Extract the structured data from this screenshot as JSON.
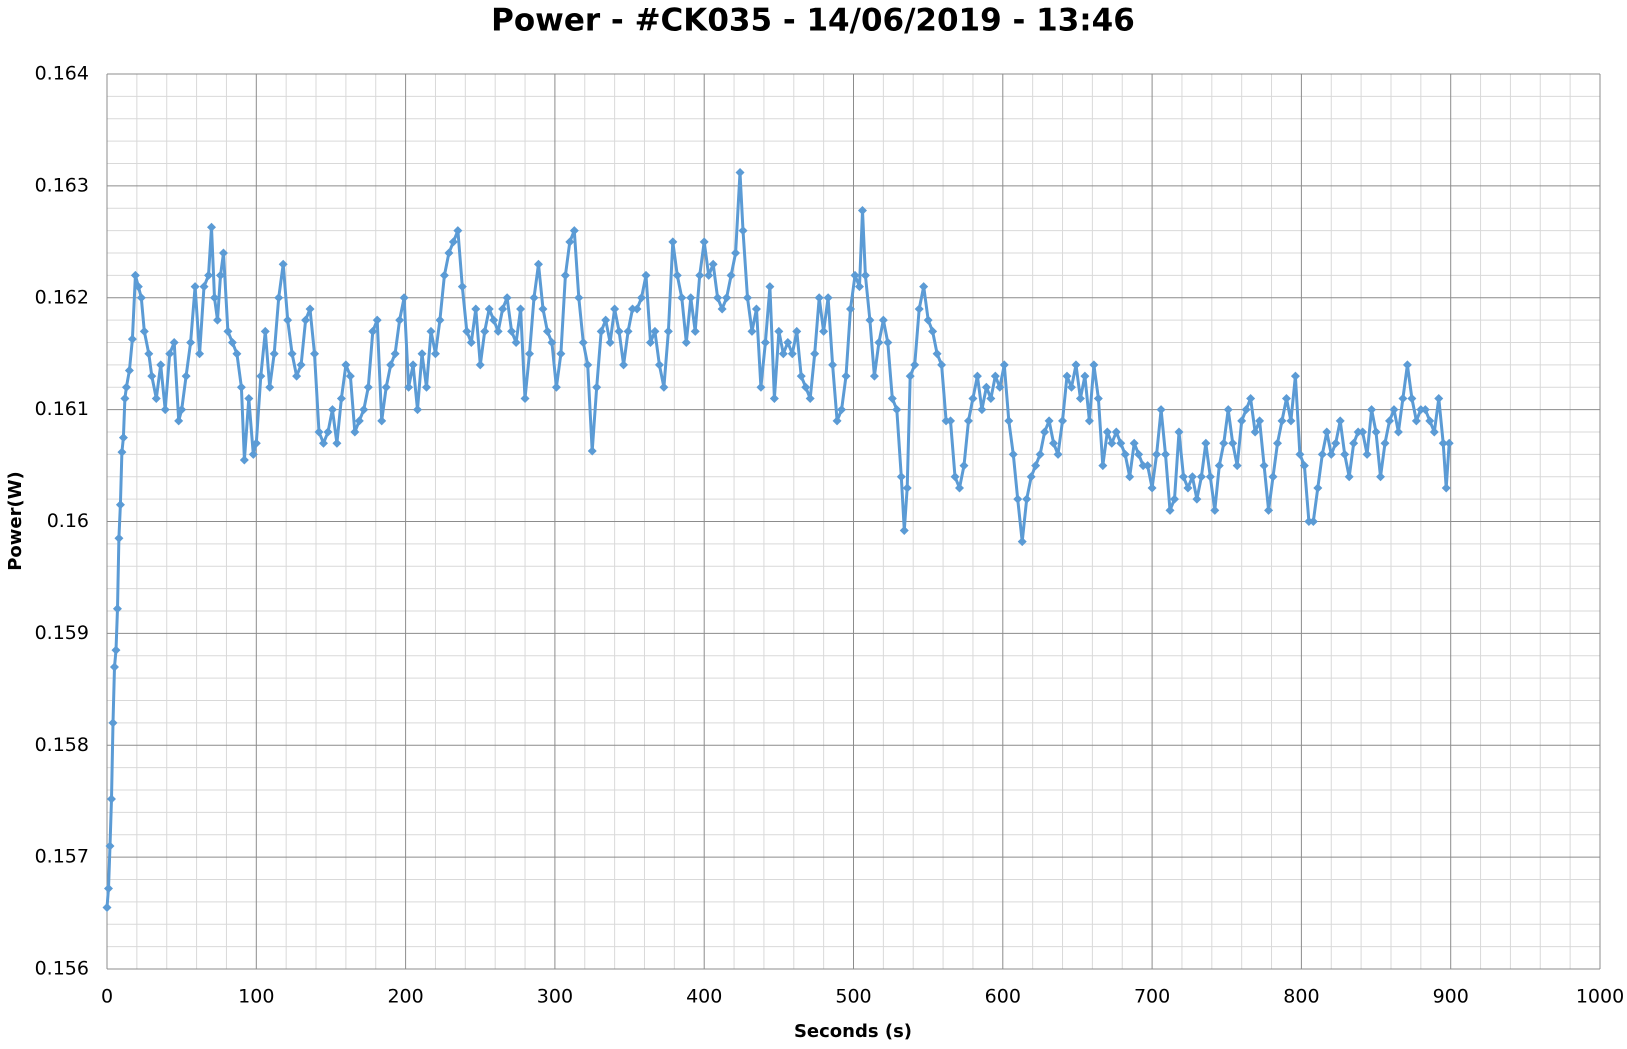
{
  "chart_data": {
    "type": "line",
    "title": "Power - #CK035 - 14/06/2019 - 13:46",
    "x_label": "Seconds (s)",
    "y_label": "Power(W)",
    "xlim": [
      0,
      1000
    ],
    "xticks": [
      0,
      100,
      200,
      300,
      400,
      500,
      600,
      700,
      800,
      900,
      1000
    ],
    "ylim": [
      0.156,
      0.164
    ],
    "yticks": [
      0.156,
      0.157,
      0.158,
      0.159,
      0.16,
      0.161,
      0.162,
      0.163,
      0.164
    ],
    "grid": true,
    "xminor": 5,
    "yminor": 5,
    "series": [
      {
        "name": "Power",
        "color": "#5b9bd5",
        "x": [
          0,
          1,
          2,
          3,
          4,
          5,
          6,
          7,
          8,
          9,
          10,
          11,
          12,
          13,
          15,
          17,
          19,
          21,
          23,
          25,
          28,
          30,
          33,
          36,
          39,
          42,
          45,
          48,
          50,
          53,
          56,
          59,
          62,
          65,
          68,
          70,
          72,
          74,
          76,
          78,
          81,
          84,
          87,
          90,
          92,
          95,
          98,
          100,
          103,
          106,
          109,
          112,
          115,
          118,
          121,
          124,
          127,
          130,
          133,
          136,
          139,
          142,
          145,
          148,
          151,
          154,
          157,
          160,
          163,
          166,
          169,
          172,
          175,
          178,
          181,
          184,
          187,
          190,
          193,
          196,
          199,
          202,
          205,
          208,
          211,
          214,
          217,
          220,
          223,
          226,
          229,
          232,
          235,
          238,
          241,
          244,
          247,
          250,
          253,
          256,
          259,
          262,
          265,
          268,
          271,
          274,
          277,
          280,
          283,
          286,
          289,
          292,
          295,
          298,
          301,
          304,
          307,
          310,
          313,
          316,
          319,
          322,
          325,
          328,
          331,
          334,
          337,
          340,
          343,
          346,
          349,
          352,
          355,
          358,
          361,
          364,
          367,
          370,
          373,
          376,
          379,
          382,
          385,
          388,
          391,
          394,
          397,
          400,
          403,
          406,
          409,
          412,
          415,
          418,
          421,
          424,
          426,
          429,
          432,
          435,
          438,
          441,
          444,
          447,
          450,
          453,
          456,
          459,
          462,
          465,
          468,
          471,
          474,
          477,
          480,
          483,
          486,
          489,
          492,
          495,
          498,
          501,
          504,
          506,
          508,
          511,
          514,
          517,
          520,
          523,
          526,
          529,
          532,
          534,
          536,
          538,
          541,
          544,
          547,
          550,
          553,
          556,
          559,
          562,
          565,
          568,
          571,
          574,
          577,
          580,
          583,
          586,
          589,
          592,
          595,
          598,
          601,
          604,
          607,
          610,
          613,
          616,
          619,
          622,
          625,
          628,
          631,
          634,
          637,
          640,
          643,
          646,
          649,
          652,
          655,
          658,
          661,
          664,
          667,
          670,
          673,
          676,
          679,
          682,
          685,
          688,
          691,
          694,
          697,
          700,
          703,
          706,
          709,
          712,
          715,
          718,
          721,
          724,
          727,
          730,
          733,
          736,
          739,
          742,
          745,
          748,
          751,
          754,
          757,
          760,
          763,
          766,
          769,
          772,
          775,
          778,
          781,
          784,
          787,
          790,
          793,
          796,
          799,
          802,
          805,
          808,
          811,
          814,
          817,
          820,
          823,
          826,
          829,
          832,
          835,
          838,
          841,
          844,
          847,
          850,
          853,
          856,
          859,
          862,
          865,
          868,
          871,
          874,
          877,
          880,
          883,
          886,
          889,
          892,
          895,
          897,
          899
        ],
        "values": [
          0.15655,
          0.15672,
          0.1571,
          0.15752,
          0.1582,
          0.1587,
          0.15885,
          0.15922,
          0.15985,
          0.16015,
          0.16062,
          0.16075,
          0.1611,
          0.1612,
          0.16135,
          0.16163,
          0.1622,
          0.1621,
          0.162,
          0.1617,
          0.1615,
          0.1613,
          0.1611,
          0.1614,
          0.161,
          0.1615,
          0.1616,
          0.1609,
          0.161,
          0.1613,
          0.1616,
          0.1621,
          0.1615,
          0.1621,
          0.1622,
          0.16263,
          0.162,
          0.1618,
          0.1622,
          0.1624,
          0.1617,
          0.1616,
          0.1615,
          0.1612,
          0.16055,
          0.1611,
          0.1606,
          0.1607,
          0.1613,
          0.1617,
          0.1612,
          0.1615,
          0.162,
          0.1623,
          0.1618,
          0.1615,
          0.1613,
          0.1614,
          0.1618,
          0.1619,
          0.1615,
          0.1608,
          0.1607,
          0.1608,
          0.161,
          0.1607,
          0.1611,
          0.1614,
          0.1613,
          0.1608,
          0.1609,
          0.161,
          0.1612,
          0.1617,
          0.1618,
          0.1609,
          0.1612,
          0.1614,
          0.1615,
          0.1618,
          0.162,
          0.1612,
          0.1614,
          0.161,
          0.1615,
          0.1612,
          0.1617,
          0.1615,
          0.1618,
          0.1622,
          0.1624,
          0.1625,
          0.1626,
          0.1621,
          0.1617,
          0.1616,
          0.1619,
          0.1614,
          0.1617,
          0.1619,
          0.1618,
          0.1617,
          0.1619,
          0.162,
          0.1617,
          0.1616,
          0.1619,
          0.1611,
          0.1615,
          0.162,
          0.1623,
          0.1619,
          0.1617,
          0.1616,
          0.1612,
          0.1615,
          0.1622,
          0.1625,
          0.1626,
          0.162,
          0.1616,
          0.1614,
          0.16063,
          0.1612,
          0.1617,
          0.1618,
          0.1616,
          0.1619,
          0.1617,
          0.1614,
          0.1617,
          0.1619,
          0.1619,
          0.162,
          0.1622,
          0.1616,
          0.1617,
          0.1614,
          0.1612,
          0.1617,
          0.1625,
          0.1622,
          0.162,
          0.1616,
          0.162,
          0.1617,
          0.1622,
          0.1625,
          0.1622,
          0.1623,
          0.162,
          0.1619,
          0.162,
          0.1622,
          0.1624,
          0.16312,
          0.1626,
          0.162,
          0.1617,
          0.1619,
          0.1612,
          0.1616,
          0.1621,
          0.1611,
          0.1617,
          0.1615,
          0.1616,
          0.1615,
          0.1617,
          0.1613,
          0.1612,
          0.1611,
          0.1615,
          0.162,
          0.1617,
          0.162,
          0.1614,
          0.1609,
          0.161,
          0.1613,
          0.1619,
          0.1622,
          0.1621,
          0.16278,
          0.1622,
          0.1618,
          0.1613,
          0.1616,
          0.1618,
          0.1616,
          0.1611,
          0.161,
          0.1604,
          0.15992,
          0.1603,
          0.1613,
          0.1614,
          0.1619,
          0.1621,
          0.1618,
          0.1617,
          0.1615,
          0.1614,
          0.1609,
          0.1609,
          0.1604,
          0.1603,
          0.1605,
          0.1609,
          0.1611,
          0.1613,
          0.161,
          0.1612,
          0.1611,
          0.1613,
          0.1612,
          0.1614,
          0.1609,
          0.1606,
          0.1602,
          0.15982,
          0.1602,
          0.1604,
          0.1605,
          0.1606,
          0.1608,
          0.1609,
          0.1607,
          0.1606,
          0.1609,
          0.1613,
          0.1612,
          0.1614,
          0.1611,
          0.1613,
          0.1609,
          0.1614,
          0.1611,
          0.1605,
          0.1608,
          0.1607,
          0.1608,
          0.1607,
          0.1606,
          0.1604,
          0.1607,
          0.1606,
          0.1605,
          0.1605,
          0.1603,
          0.1606,
          0.161,
          0.1606,
          0.1601,
          0.1602,
          0.1608,
          0.1604,
          0.1603,
          0.1604,
          0.1602,
          0.1604,
          0.1607,
          0.1604,
          0.1601,
          0.1605,
          0.1607,
          0.161,
          0.1607,
          0.1605,
          0.1609,
          0.161,
          0.1611,
          0.1608,
          0.1609,
          0.1605,
          0.1601,
          0.1604,
          0.1607,
          0.1609,
          0.1611,
          0.1609,
          0.1613,
          0.1606,
          0.1605,
          0.16,
          0.16,
          0.1603,
          0.1606,
          0.1608,
          0.1606,
          0.1607,
          0.1609,
          0.1606,
          0.1604,
          0.1607,
          0.1608,
          0.1608,
          0.1606,
          0.161,
          0.1608,
          0.1604,
          0.1607,
          0.1609,
          0.161,
          0.1608,
          0.1611,
          0.1614,
          0.1611,
          0.1609,
          0.161,
          0.161,
          0.1609,
          0.1608,
          0.1611,
          0.1607,
          0.1603,
          0.1607
        ]
      }
    ]
  }
}
